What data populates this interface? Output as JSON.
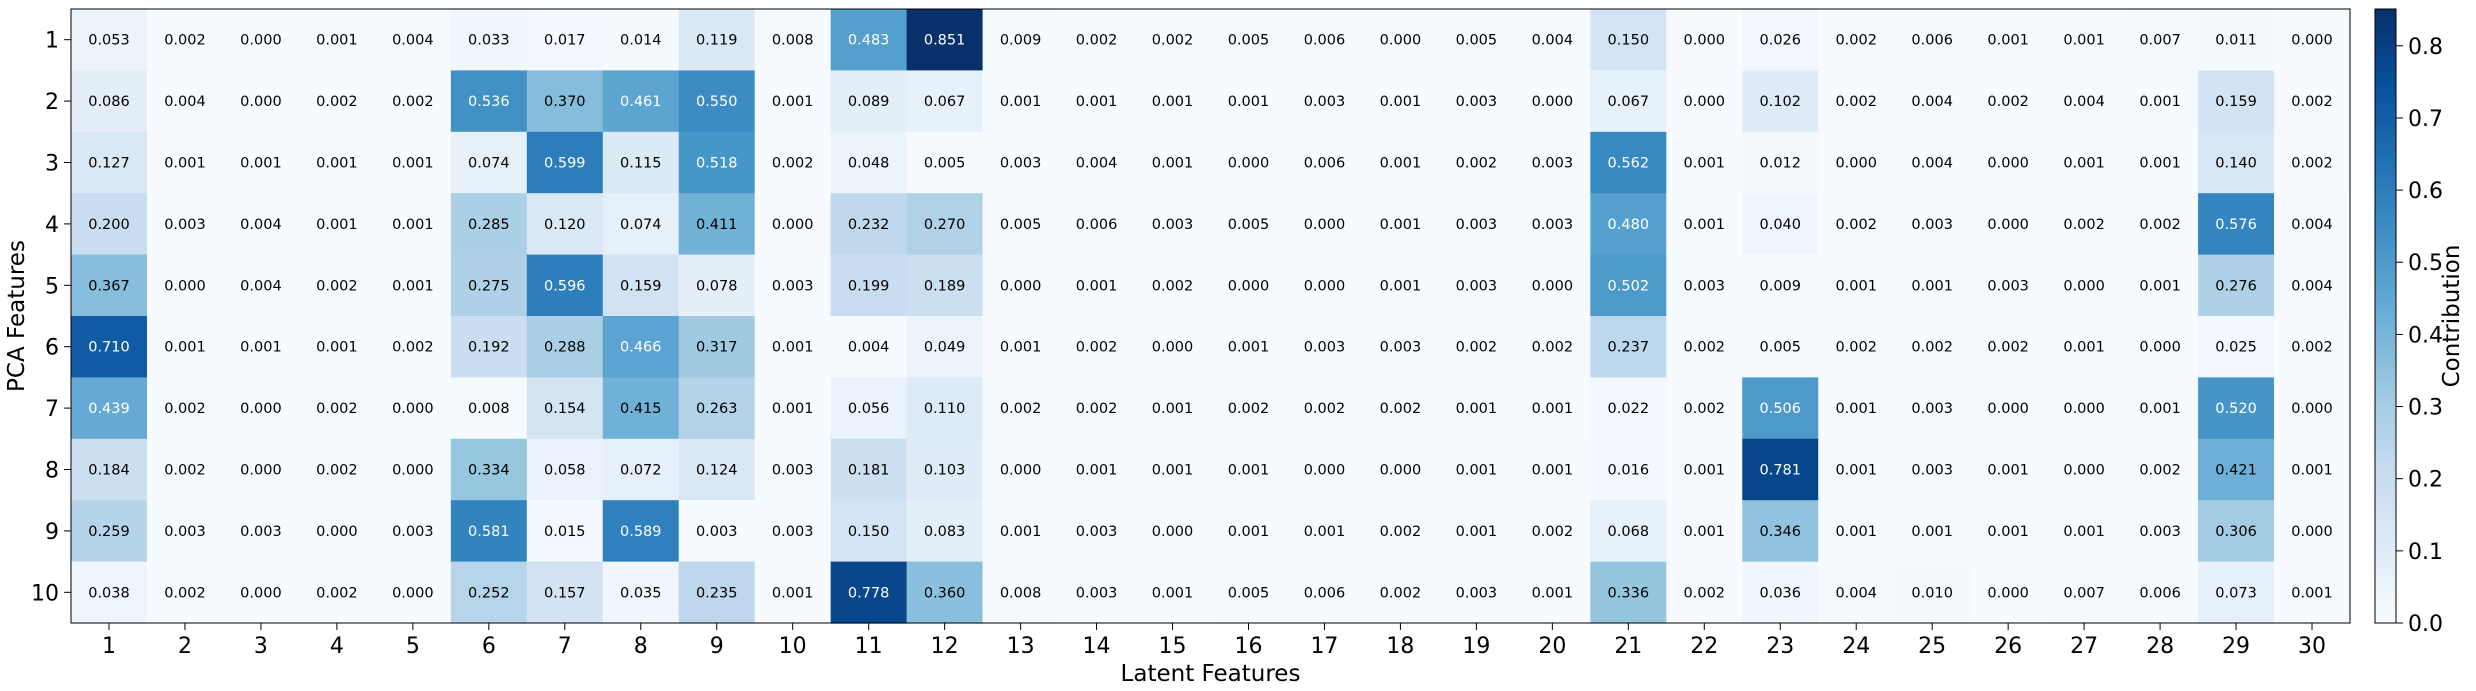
{
  "chart_data": {
    "type": "heatmap",
    "title": "",
    "xlabel": "Latent Features",
    "ylabel": "PCA Features",
    "x_categories": [
      "1",
      "2",
      "3",
      "4",
      "5",
      "6",
      "7",
      "8",
      "9",
      "10",
      "11",
      "12",
      "13",
      "14",
      "15",
      "16",
      "17",
      "18",
      "19",
      "20",
      "21",
      "22",
      "23",
      "24",
      "25",
      "26",
      "27",
      "28",
      "29",
      "30"
    ],
    "y_categories": [
      "1",
      "2",
      "3",
      "4",
      "5",
      "6",
      "7",
      "8",
      "9",
      "10"
    ],
    "values": [
      [
        0.053,
        0.002,
        0.0,
        0.001,
        0.004,
        0.033,
        0.017,
        0.014,
        0.119,
        0.008,
        0.483,
        0.851,
        0.009,
        0.002,
        0.002,
        0.005,
        0.006,
        0.0,
        0.005,
        0.004,
        0.15,
        0.0,
        0.026,
        0.002,
        0.006,
        0.001,
        0.001,
        0.007,
        0.011,
        0.0
      ],
      [
        0.086,
        0.004,
        0.0,
        0.002,
        0.002,
        0.536,
        0.37,
        0.461,
        0.55,
        0.001,
        0.089,
        0.067,
        0.001,
        0.001,
        0.001,
        0.001,
        0.003,
        0.001,
        0.003,
        0.0,
        0.067,
        0.0,
        0.102,
        0.002,
        0.004,
        0.002,
        0.004,
        0.001,
        0.159,
        0.002
      ],
      [
        0.127,
        0.001,
        0.001,
        0.001,
        0.001,
        0.074,
        0.599,
        0.115,
        0.518,
        0.002,
        0.048,
        0.005,
        0.003,
        0.004,
        0.001,
        0.0,
        0.006,
        0.001,
        0.002,
        0.003,
        0.562,
        0.001,
        0.012,
        0.0,
        0.004,
        0.0,
        0.001,
        0.001,
        0.14,
        0.002
      ],
      [
        0.2,
        0.003,
        0.004,
        0.001,
        0.001,
        0.285,
        0.12,
        0.074,
        0.411,
        0.0,
        0.232,
        0.27,
        0.005,
        0.006,
        0.003,
        0.005,
        0.0,
        0.001,
        0.003,
        0.003,
        0.48,
        0.001,
        0.04,
        0.002,
        0.003,
        0.0,
        0.002,
        0.002,
        0.576,
        0.004
      ],
      [
        0.367,
        0.0,
        0.004,
        0.002,
        0.001,
        0.275,
        0.596,
        0.159,
        0.078,
        0.003,
        0.199,
        0.189,
        0.0,
        0.001,
        0.002,
        0.0,
        0.0,
        0.001,
        0.003,
        0.0,
        0.502,
        0.003,
        0.009,
        0.001,
        0.001,
        0.003,
        0.0,
        0.001,
        0.276,
        0.004
      ],
      [
        0.71,
        0.001,
        0.001,
        0.001,
        0.002,
        0.192,
        0.288,
        0.466,
        0.317,
        0.001,
        0.004,
        0.049,
        0.001,
        0.002,
        0.0,
        0.001,
        0.003,
        0.003,
        0.002,
        0.002,
        0.237,
        0.002,
        0.005,
        0.002,
        0.002,
        0.002,
        0.001,
        0.0,
        0.025,
        0.002
      ],
      [
        0.439,
        0.002,
        0.0,
        0.002,
        0.0,
        0.008,
        0.154,
        0.415,
        0.263,
        0.001,
        0.056,
        0.11,
        0.002,
        0.002,
        0.001,
        0.002,
        0.002,
        0.002,
        0.001,
        0.001,
        0.022,
        0.002,
        0.506,
        0.001,
        0.003,
        0.0,
        0.0,
        0.001,
        0.52,
        0.0
      ],
      [
        0.184,
        0.002,
        0.0,
        0.002,
        0.0,
        0.334,
        0.058,
        0.072,
        0.124,
        0.003,
        0.181,
        0.103,
        0.0,
        0.001,
        0.001,
        0.001,
        0.0,
        0.0,
        0.001,
        0.001,
        0.016,
        0.001,
        0.781,
        0.001,
        0.003,
        0.001,
        0.0,
        0.002,
        0.421,
        0.001
      ],
      [
        0.259,
        0.003,
        0.003,
        0.0,
        0.003,
        0.581,
        0.015,
        0.589,
        0.003,
        0.003,
        0.15,
        0.083,
        0.001,
        0.003,
        0.0,
        0.001,
        0.001,
        0.002,
        0.001,
        0.002,
        0.068,
        0.001,
        0.346,
        0.001,
        0.001,
        0.001,
        0.001,
        0.003,
        0.306,
        0.0
      ],
      [
        0.038,
        0.002,
        0.0,
        0.002,
        0.0,
        0.252,
        0.157,
        0.035,
        0.235,
        0.001,
        0.778,
        0.36,
        0.008,
        0.003,
        0.001,
        0.005,
        0.006,
        0.002,
        0.003,
        0.001,
        0.336,
        0.002,
        0.036,
        0.004,
        0.01,
        0.0,
        0.007,
        0.006,
        0.073,
        0.001
      ]
    ],
    "colormap": "Blues",
    "value_range": [
      0.0,
      0.851
    ],
    "colorbar": {
      "label": "Contribution",
      "ticks": [
        "0.0",
        "0.1",
        "0.2",
        "0.3",
        "0.4",
        "0.5",
        "0.6",
        "0.7",
        "0.8"
      ]
    },
    "cell_labels": true,
    "grid": false,
    "colors": {
      "low": "#f7fbff",
      "high": "#08306b",
      "text_dark": "#000000",
      "text_light": "#ffffff"
    }
  }
}
